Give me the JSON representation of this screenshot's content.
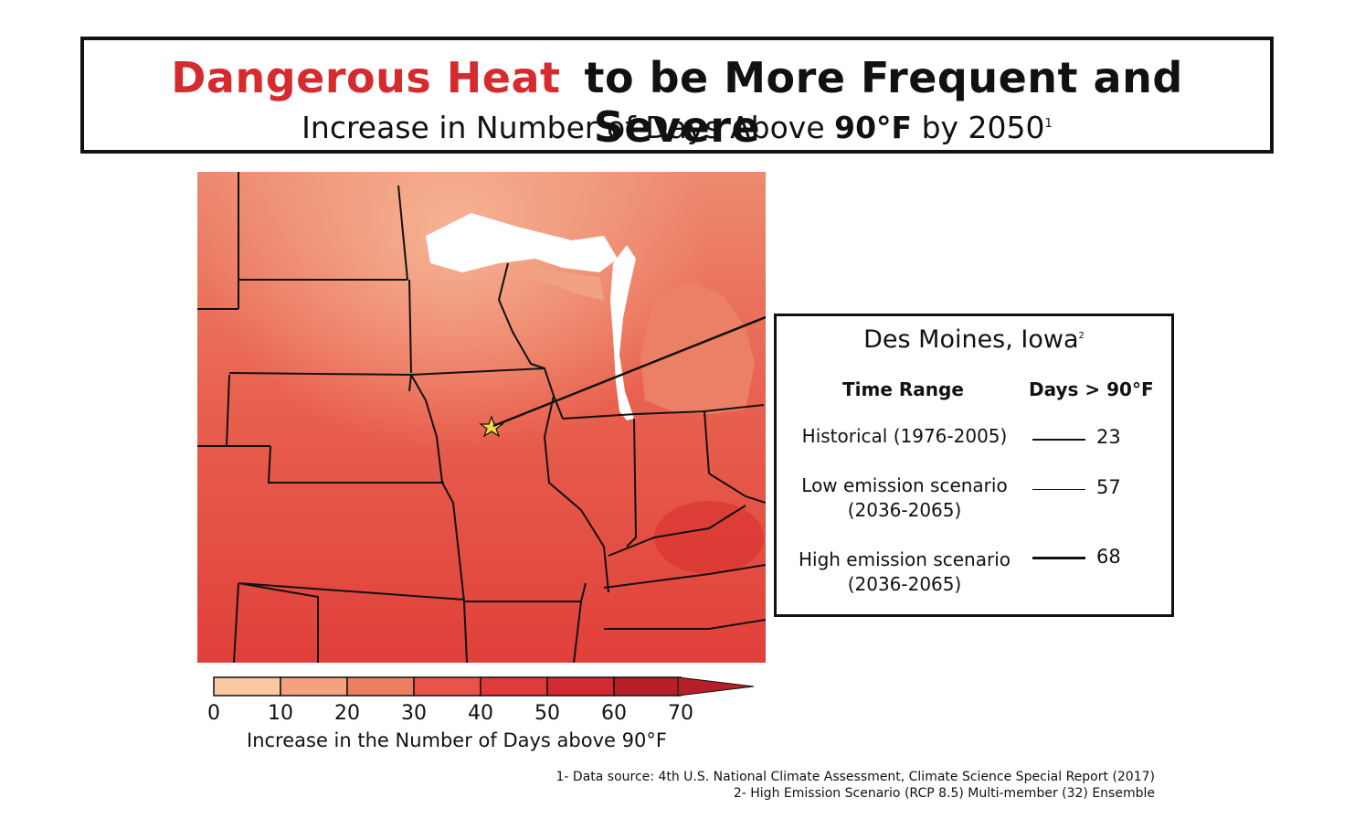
{
  "header": {
    "title_highlight": "Dangerous Heat",
    "title_rest": "to be More Frequent and Severe",
    "subtitle_pre": "Increase in Number of Days Above ",
    "subtitle_bold": "90°F",
    "subtitle_post": " by 2050",
    "subtitle_footnote": "1",
    "highlight_color": "#d52b2f"
  },
  "map": {
    "marker": "star-icon",
    "marker_location": "Des Moines, Iowa"
  },
  "info": {
    "city": "Des Moines, Iowa",
    "city_footnote": "2",
    "col_time": "Time Range",
    "col_days": "Days > 90°F",
    "rows": [
      {
        "label_line1": "Historical (1976-2005)",
        "label_line2": "",
        "value": "23"
      },
      {
        "label_line1": "Low emission scenario",
        "label_line2": "(2036-2065)",
        "value": "57"
      },
      {
        "label_line1": "High emission scenario",
        "label_line2": "(2036-2065)",
        "value": "68"
      }
    ]
  },
  "legend": {
    "title": "Increase in the Number of Days above 90°F",
    "ticks": [
      "0",
      "10",
      "20",
      "30",
      "40",
      "50",
      "60",
      "70"
    ],
    "colors": [
      "#fbc8a2",
      "#f4a17f",
      "#ee7e62",
      "#e8534a",
      "#e03a3a",
      "#d22a30",
      "#b51f28"
    ]
  },
  "sources": {
    "line1": "1- Data source: 4th U.S. National Climate Assessment, Climate Science Special Report (2017)",
    "line2": "2- High Emission Scenario (RCP 8.5) Multi-member (32) Ensemble"
  }
}
